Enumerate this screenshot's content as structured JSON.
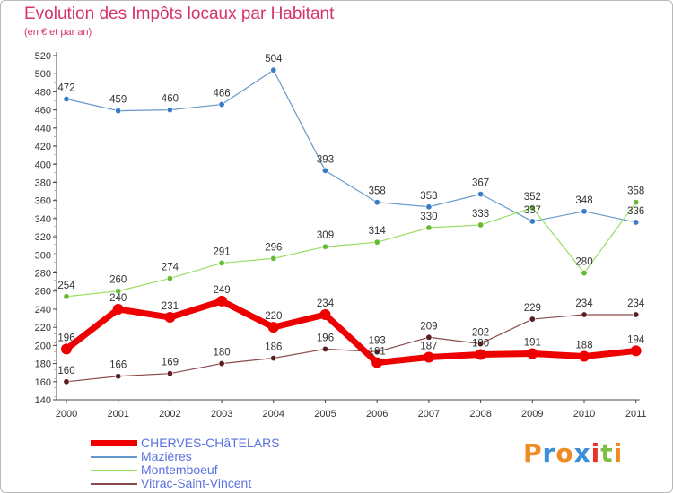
{
  "header": {
    "title": "Evolution des Impôts locaux par Habitant",
    "subtitle": "(en € et par an)"
  },
  "logo": {
    "text": "Proxiti",
    "colors": [
      "#f08a24",
      "#3b8fd9",
      "#f08a24",
      "#3b8fd9",
      "#e8322a",
      "#7bc043",
      "#f08a24"
    ]
  },
  "chart_data": {
    "type": "line",
    "title": "Evolution des Impôts locaux par Habitant",
    "subtitle": "(en € et par an)",
    "xlabel": "",
    "ylabel": "",
    "ylim": [
      140,
      520
    ],
    "ytick_step": 20,
    "grid": false,
    "legend_position": "bottom-left",
    "categories": [
      "2000",
      "2001",
      "2002",
      "2003",
      "2004",
      "2005",
      "2006",
      "2007",
      "2008",
      "2009",
      "2010",
      "2011"
    ],
    "series": [
      {
        "name": "CHERVES-CHâTELARS",
        "color": "#ee0000",
        "values": [
          196,
          240,
          231,
          249,
          220,
          234,
          181,
          187,
          190,
          191,
          188,
          194
        ],
        "labels": [
          "196",
          "240",
          "231",
          "249",
          "220",
          "234",
          "181",
          "187",
          "190",
          "191",
          "188",
          "194"
        ]
      },
      {
        "name": "Mazières",
        "color": "#6699cc",
        "marker_color": "#3a7cc4",
        "values": [
          472,
          459,
          460,
          466,
          504,
          393,
          358,
          353,
          367,
          337,
          348,
          336
        ],
        "labels": [
          "472",
          "459",
          "460",
          "466",
          "504",
          "393",
          "358",
          "353",
          "367",
          "337",
          "348",
          "336"
        ]
      },
      {
        "name": "Montemboeuf",
        "color": "#99dd66",
        "marker_color": "#66bb33",
        "values": [
          254,
          260,
          274,
          291,
          296,
          309,
          314,
          330,
          333,
          352,
          280,
          358
        ],
        "labels": [
          "254",
          "260",
          "274",
          "291",
          "296",
          "309",
          "314",
          "330",
          "333",
          "352",
          "280",
          "358"
        ]
      },
      {
        "name": "Vitrac-Saint-Vincent",
        "color": "#8b4a4a",
        "marker_color": "#5a1f1f",
        "values": [
          160,
          166,
          169,
          180,
          186,
          196,
          193,
          209,
          202,
          229,
          234,
          234
        ],
        "labels": [
          "160",
          "166",
          "169",
          "180",
          "186",
          "196",
          "193",
          "209",
          "202",
          "229",
          "234",
          "234"
        ]
      }
    ]
  }
}
